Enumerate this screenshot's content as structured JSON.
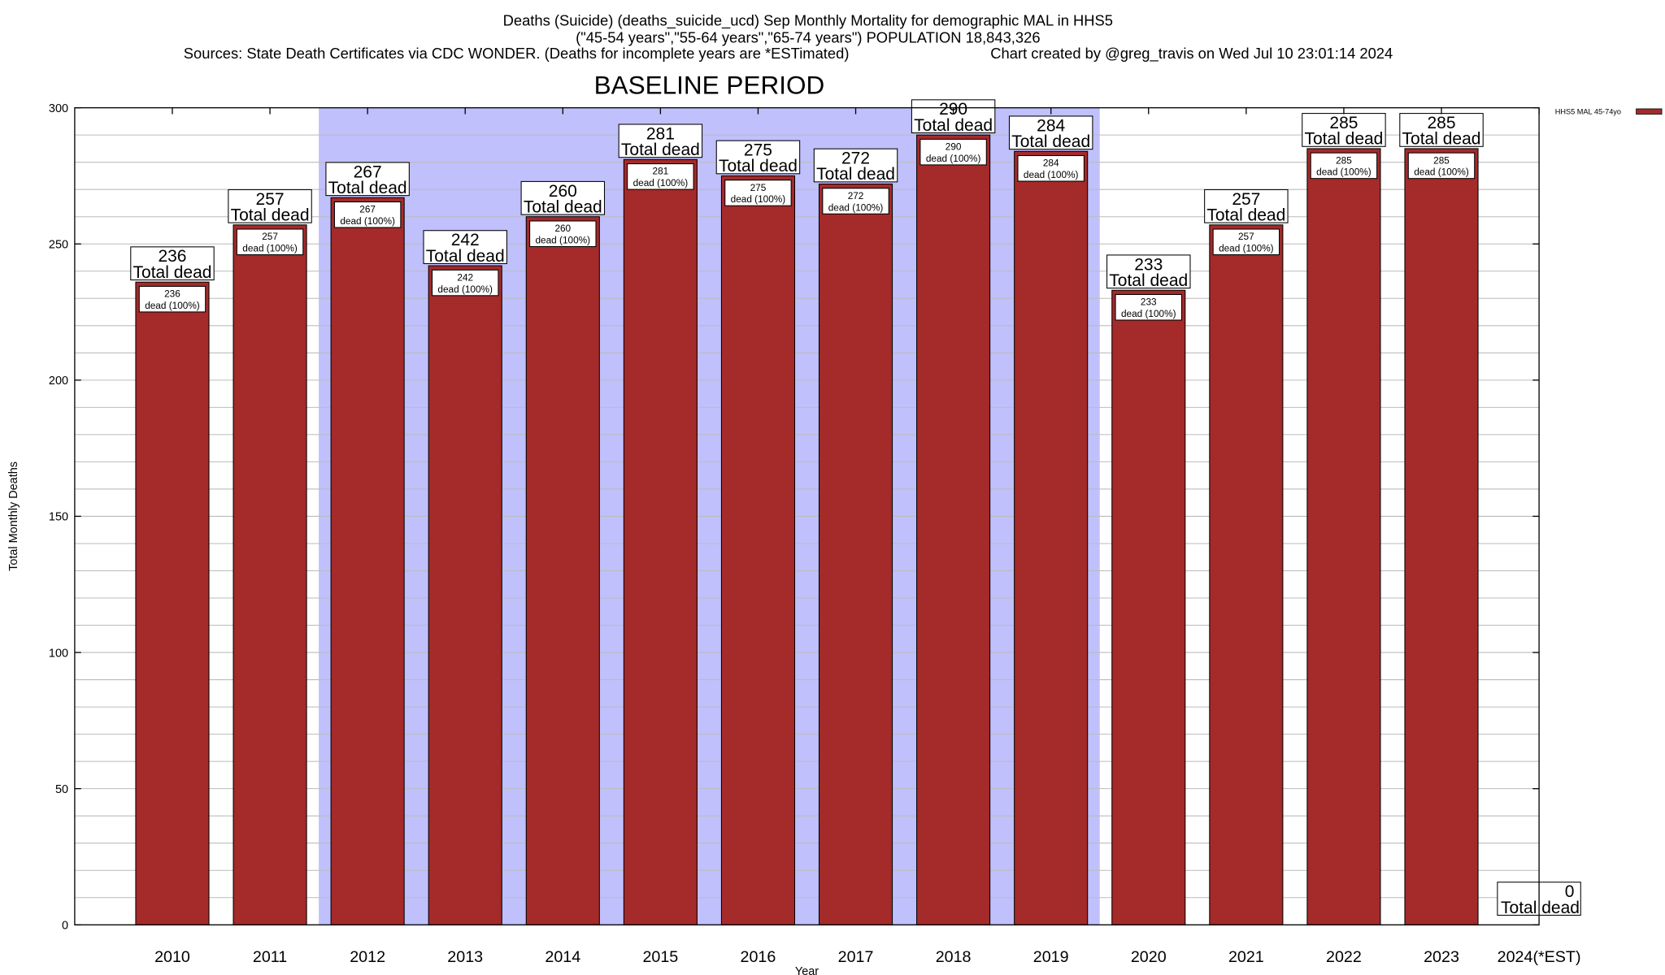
{
  "chart_data": {
    "type": "bar",
    "title_lines": [
      "Deaths (Suicide) (deaths_suicide_ucd) Sep Monthly Mortality for demographic MAL in HHS5",
      "(\"45-54 years\",\"55-64 years\",\"65-74 years\") POPULATION 18,843,326"
    ],
    "sources": "Sources: State Death Certificates via CDC WONDER. (Deaths for incomplete years are *ESTimated)",
    "credit": "Chart created by @greg_travis on Wed Jul 10 23:01:14 2024",
    "xlabel": "Year",
    "ylabel": "Total Monthly Deaths",
    "ylim": [
      0,
      300
    ],
    "yticks": [
      0,
      50,
      100,
      150,
      200,
      250,
      300
    ],
    "grid": true,
    "categories": [
      "2010",
      "2011",
      "2012",
      "2013",
      "2014",
      "2015",
      "2016",
      "2017",
      "2018",
      "2019",
      "2020",
      "2021",
      "2022",
      "2023",
      "2024(*EST)"
    ],
    "series": [
      {
        "name": "HHS5 MAL 45-74yo",
        "color": "#a52a2a",
        "values": [
          236,
          257,
          267,
          242,
          260,
          281,
          275,
          272,
          290,
          284,
          233,
          257,
          285,
          285,
          0
        ]
      }
    ],
    "top_label_suffix": "Total dead",
    "inner_label_suffix": "dead (100%)",
    "baseline": {
      "label": "BASELINE PERIOD",
      "from": "2012",
      "to": "2019",
      "color": "#c0c0fc"
    },
    "legend": {
      "placement": "top-right"
    }
  }
}
